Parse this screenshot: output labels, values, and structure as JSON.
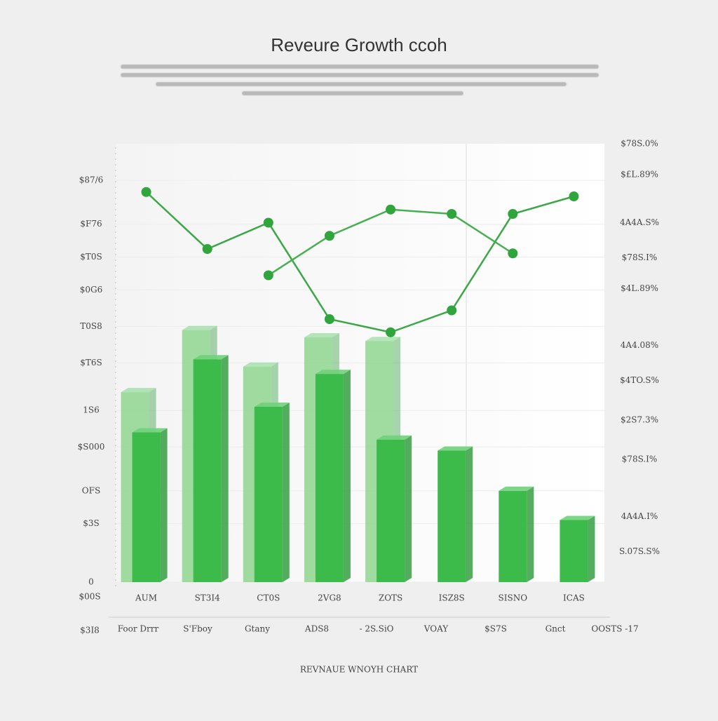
{
  "chart_data": {
    "type": "bar",
    "title": "Reveure Growth ccoh",
    "caption": "REVNAUE WNOYH CHART",
    "categories": [
      "AUM",
      "ST3I4",
      "CT0S",
      "2VG8",
      "ZOTS",
      "ISZ8S",
      "SISNO",
      "ICAS"
    ],
    "secondary_labels": [
      "Foor Drrr",
      "S'Fboy",
      "Gtany",
      "ADS8",
      "- 2S.SiO",
      "VOAY",
      "$S7S",
      "Gnct",
      "OOSTS -17"
    ],
    "row_labels": [
      "$00S",
      "$3I8"
    ],
    "series": [
      {
        "color": "#8fd68f",
        "values": [
          52,
          69,
          59,
          67,
          66,
          null,
          null,
          null
        ]
      },
      {
        "color": "#3dbb4a",
        "values": [
          41,
          61,
          48,
          57,
          39,
          36,
          25,
          17
        ]
      },
      {
        "type": "line",
        "axis": "y2",
        "color": "#3aa845",
        "values": [
          89,
          76,
          82,
          60,
          57,
          62,
          84,
          88
        ]
      },
      {
        "type": "line",
        "axis": "y2",
        "color": "#45b04f",
        "values": [
          null,
          null,
          70,
          79,
          85,
          84,
          75,
          null
        ]
      }
    ],
    "ylim": [
      0,
      120
    ],
    "yticks": [
      {
        "value": 110,
        "label": "$87/6"
      },
      {
        "value": 98,
        "label": "$F76"
      },
      {
        "value": 89,
        "label": "$T0S"
      },
      {
        "value": 80,
        "label": "$0G6"
      },
      {
        "value": 70,
        "label": "T0S8"
      },
      {
        "value": 60,
        "label": "$T6S"
      },
      {
        "value": 47,
        "label": "1S6"
      },
      {
        "value": 37,
        "label": "$S000"
      },
      {
        "value": 25,
        "label": "OFS"
      },
      {
        "value": 16,
        "label": "$3S"
      },
      0
    ],
    "y2lim": [
      0,
      100
    ],
    "y2ticks": [
      {
        "value": 100,
        "label": "$78S.0%"
      },
      {
        "value": 93,
        "label": "$£L.89%"
      },
      {
        "value": 82,
        "label": "4A4A.S%"
      },
      {
        "value": 74,
        "label": "$78S.I%"
      },
      {
        "value": 67,
        "label": "$4L.89%"
      },
      {
        "value": 54,
        "label": "4A4.08%"
      },
      {
        "value": 46,
        "label": "$4TO.S%"
      },
      {
        "value": 37,
        "label": "$2S7.3%"
      },
      {
        "value": 28,
        "label": "$78S.I%"
      },
      {
        "value": 15,
        "label": "4A4A.I%"
      },
      {
        "value": 7,
        "label": "S.07S.S%"
      }
    ],
    "grid": true
  }
}
